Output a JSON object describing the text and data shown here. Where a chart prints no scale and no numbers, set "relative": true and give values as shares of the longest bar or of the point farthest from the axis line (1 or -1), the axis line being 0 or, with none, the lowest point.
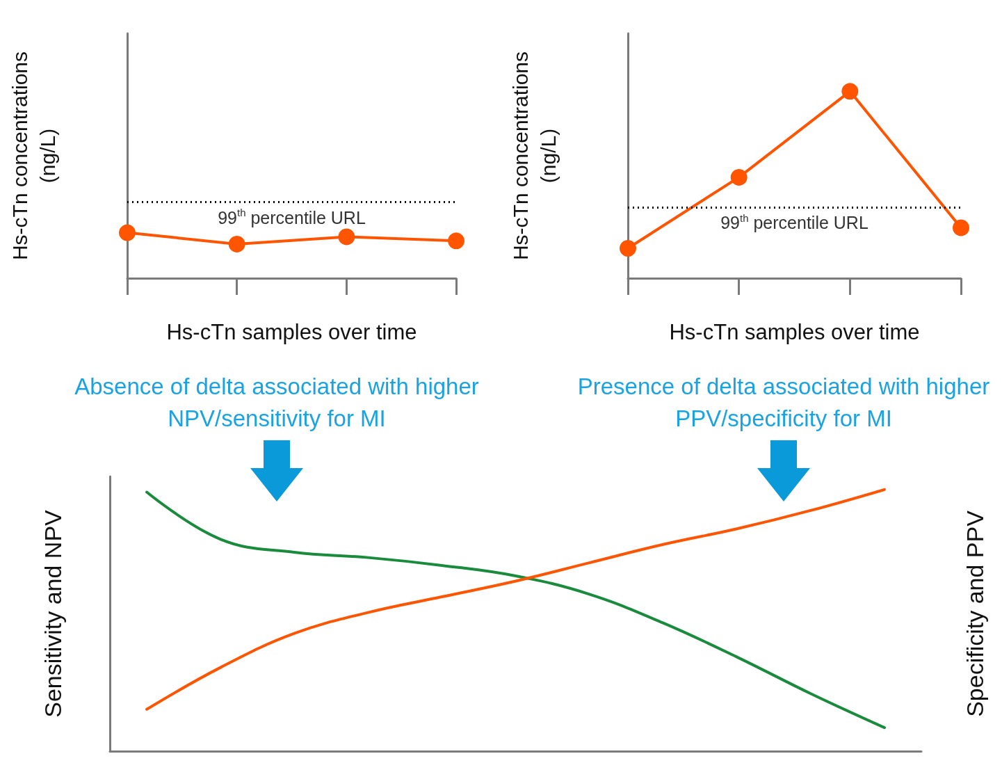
{
  "chart_data": [
    {
      "type": "line",
      "relative": true,
      "xlabel": "Hs-cTn samples over time",
      "ylabel": "Hs-cTn concentrations (ng/L)",
      "categories": [
        null,
        null,
        null,
        null
      ],
      "marker": "circle",
      "grid": false,
      "series": [
        {
          "color": "#ff5500",
          "values": [
            1,
            0.75,
            0.91,
            0.82
          ]
        }
      ],
      "ref_lines": [
        {
          "axis": "y",
          "value": 1.68,
          "label": "99$^{th}$ percentile URL",
          "color": "#000000",
          "line_style": "dotted"
        }
      ]
    },
    {
      "type": "line",
      "relative": true,
      "xlabel": "Hs-cTn samples over time",
      "ylabel": "Hs-cTn concentrations (ng/L)",
      "categories": [
        null,
        null,
        null,
        null
      ],
      "marker": "circle",
      "grid": false,
      "series": [
        {
          "color": "#ff5500",
          "values": [
            0.16,
            0.54,
            1,
            0.27
          ]
        }
      ],
      "ref_lines": [
        {
          "axis": "y",
          "value": 0.38,
          "label": "99$^{th}$ percentile URL",
          "color": "#000000",
          "line_style": "dotted"
        }
      ]
    },
    {
      "type": "line",
      "relative": true,
      "ylabel": "Sensitivity and NPV",
      "y2label": "Specificity and PPV",
      "categories": [
        null,
        null,
        null,
        null,
        null,
        null,
        null,
        null,
        null,
        null,
        null
      ],
      "marker": "none",
      "grid": false,
      "series": [
        {
          "color": "#1a8a3c",
          "values": [
            0.99,
            0.81,
            0.76,
            0.74,
            0.71,
            0.67,
            0.6,
            0.49,
            0.36,
            0.22,
            0.09
          ]
        },
        {
          "color": "#ff5500",
          "values": [
            0.16,
            0.32,
            0.45,
            0.53,
            0.59,
            0.65,
            0.72,
            0.79,
            0.85,
            0.92,
            1
          ]
        }
      ],
      "annotations": [
        "Absence of delta associated with higher NPV/sensitivity for MI",
        "Presence of delta associated with higher PPV/specificity for MI"
      ]
    }
  ]
}
